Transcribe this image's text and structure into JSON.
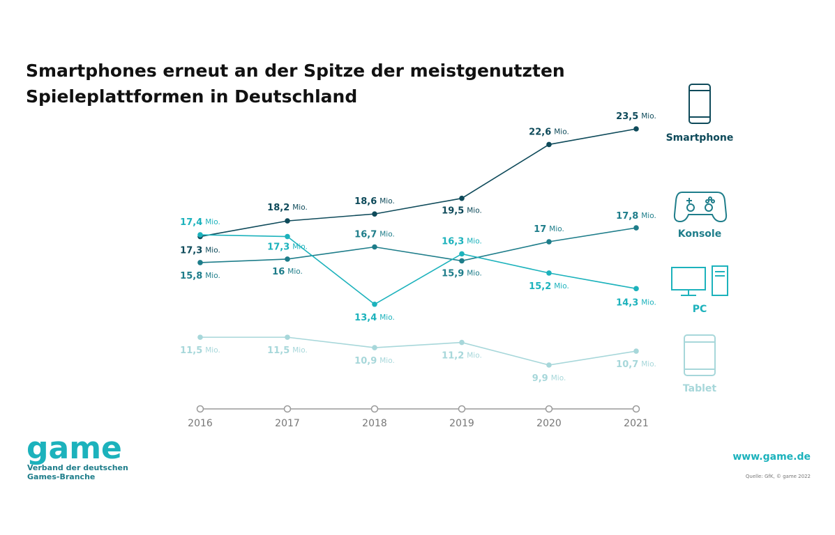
{
  "chart_data": {
    "type": "line",
    "title": [
      "Smartphones erneut an der Spitze der meistgenutzten",
      "Spieleplattformen in Deutschland"
    ],
    "categories": [
      "2016",
      "2017",
      "2018",
      "2019",
      "2020",
      "2021"
    ],
    "unit": "Mio.",
    "series": [
      {
        "name": "Smartphone",
        "color": "#0e4a5a",
        "values": [
          17.3,
          18.2,
          18.6,
          19.5,
          22.6,
          23.5
        ],
        "value_labels": [
          "17,3",
          "18,2",
          "18,6",
          "19,5",
          "22,6",
          "23,5"
        ]
      },
      {
        "name": "Konsole",
        "color": "#1e7d8a",
        "values": [
          15.8,
          16,
          16.7,
          15.9,
          17,
          17.8
        ],
        "value_labels": [
          "15,8",
          "16",
          "16,7",
          "15,9",
          "17",
          "17,8"
        ]
      },
      {
        "name": "PC",
        "color": "#1cb2bc",
        "values": [
          17.4,
          17.3,
          13.4,
          16.3,
          15.2,
          14.3
        ],
        "value_labels": [
          "17,4",
          "17,3",
          "13,4",
          "16,3",
          "15,2",
          "14,3"
        ]
      },
      {
        "name": "Tablet",
        "color": "#a7d7da",
        "values": [
          11.5,
          11.5,
          10.9,
          11.2,
          9.9,
          10.7
        ],
        "value_labels": [
          "11,5",
          "11,5",
          "10,9",
          "11,2",
          "9,9",
          "10,7"
        ]
      }
    ],
    "logo": "game",
    "logo_subtitle": [
      "Verband der deutschen",
      "Games-Branche"
    ],
    "website": "www.game.de",
    "source": "Quelle: GfK, © game 2022"
  }
}
